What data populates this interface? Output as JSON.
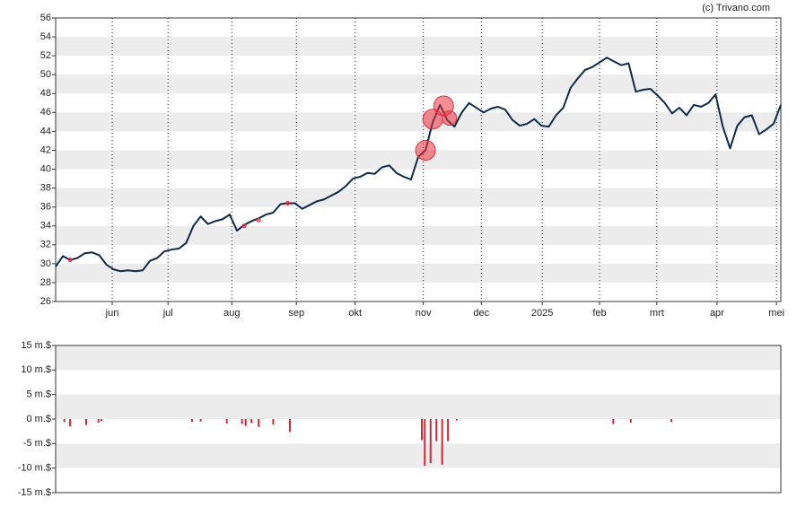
{
  "credit": "(c) Trivano.com",
  "chart_data": [
    {
      "type": "line",
      "color": "#0d2a4a",
      "values": [
        29.7,
        30.8,
        30.4,
        30.6,
        31.1,
        31.2,
        30.9,
        29.9,
        29.4,
        29.2,
        29.3,
        29.2,
        29.3,
        30.3,
        30.6,
        31.3,
        31.5,
        31.6,
        32.2,
        34.0,
        35.0,
        34.2,
        34.5,
        34.7,
        35.2,
        33.5,
        34.1,
        34.5,
        34.8,
        35.2,
        35.4,
        36.3,
        36.4,
        36.4,
        35.8,
        36.2,
        36.6,
        36.8,
        37.2,
        37.6,
        38.2,
        39.0,
        39.2,
        39.6,
        39.5,
        40.2,
        40.4,
        39.6,
        39.2,
        38.9,
        41.3,
        42.0,
        45.0,
        46.8,
        45.2,
        44.5,
        46.0,
        47.0,
        46.5,
        46.0,
        46.4,
        46.6,
        46.3,
        45.2,
        44.6,
        44.8,
        45.3,
        44.6,
        44.5,
        45.7,
        46.5,
        48.6,
        49.6,
        50.5,
        50.8,
        51.3,
        51.8,
        51.4,
        51.0,
        51.2,
        48.2,
        48.4,
        48.5,
        47.8,
        47.0,
        45.9,
        46.5,
        45.7,
        46.8,
        46.6,
        47.0,
        47.9,
        44.5,
        42.2,
        44.6,
        45.5,
        45.7,
        43.7,
        44.2,
        44.8,
        46.8
      ],
      "markers": {
        "x": [
          2,
          26,
          28,
          32,
          51,
          52,
          53.5,
          54.3
        ],
        "y": [
          30.4,
          34.0,
          34.6,
          36.4,
          42.0,
          45.3,
          46.7,
          45.4
        ],
        "size": [
          2,
          2,
          2,
          2,
          11,
          11,
          11,
          8
        ]
      },
      "xlim": [
        0,
        100
      ],
      "xticks": [
        {
          "value": 7.8,
          "label": "jun"
        },
        {
          "value": 15.5,
          "label": "jul"
        },
        {
          "value": 24.3,
          "label": "aug"
        },
        {
          "value": 33.2,
          "label": "sep"
        },
        {
          "value": 41.3,
          "label": "okt"
        },
        {
          "value": 50.7,
          "label": "nov"
        },
        {
          "value": 58.7,
          "label": "dec"
        },
        {
          "value": 67.1,
          "label": "2025"
        },
        {
          "value": 75.0,
          "label": "feb"
        },
        {
          "value": 82.9,
          "label": "mrt"
        },
        {
          "value": 91.2,
          "label": "apr"
        },
        {
          "value": 99.4,
          "label": "mei"
        }
      ],
      "ylim": [
        26,
        56
      ],
      "yticks": [
        26,
        28,
        30,
        32,
        34,
        36,
        38,
        40,
        42,
        44,
        46,
        48,
        50,
        52,
        54,
        56
      ]
    },
    {
      "type": "bar",
      "color": "#d9232e",
      "x": [
        1.2,
        2.0,
        4.2,
        5.9,
        6.3,
        18.8,
        20,
        23.6,
        25.7,
        26.2,
        27,
        28,
        30,
        32.3,
        50.5,
        50.9,
        51.7,
        52.5,
        53.3,
        54.1,
        55.3,
        76.9,
        79.3,
        84.9
      ],
      "values": [
        -0.6,
        -1.5,
        -1.2,
        -0.7,
        -0.4,
        -0.6,
        -0.5,
        -0.9,
        -1.0,
        -1.4,
        -0.8,
        -1.6,
        -1.1,
        -2.6,
        -4.3,
        -9.5,
        -9.0,
        -4.5,
        -9.3,
        -4.5,
        -0.3,
        -1.0,
        -0.7,
        -0.6
      ],
      "xlim": [
        0,
        100
      ],
      "ylim": [
        -15,
        15
      ],
      "yticks": [
        {
          "value": -15,
          "label": "-15 m.$"
        },
        {
          "value": -10,
          "label": "-10 m.$"
        },
        {
          "value": -5,
          "label": "-5 m.$"
        },
        {
          "value": 0,
          "label": "0 m.$"
        },
        {
          "value": 5,
          "label": "5 m.$"
        },
        {
          "value": 10,
          "label": "10 m.$"
        },
        {
          "value": 15,
          "label": "15 m.$"
        }
      ]
    }
  ]
}
